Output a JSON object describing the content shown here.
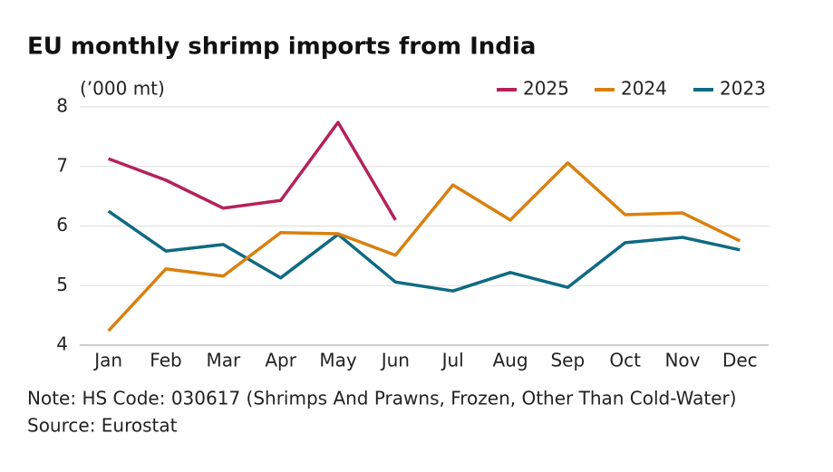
{
  "chart_data": {
    "type": "line",
    "title": "EU monthly shrimp imports from India",
    "y_label": "(’000 mt)",
    "categories": [
      "Jan",
      "Feb",
      "Mar",
      "Apr",
      "May",
      "Jun",
      "Jul",
      "Aug",
      "Sep",
      "Oct",
      "Nov",
      "Dec"
    ],
    "series": [
      {
        "name": "2025",
        "color": "#b5215a",
        "values": [
          7.13,
          6.77,
          6.3,
          6.43,
          7.74,
          6.1,
          null,
          null,
          null,
          null,
          null,
          null
        ]
      },
      {
        "name": "2024",
        "color": "#d9800f",
        "values": [
          4.24,
          5.28,
          5.16,
          5.89,
          5.87,
          5.51,
          6.69,
          6.1,
          7.06,
          6.19,
          6.22,
          5.75
        ]
      },
      {
        "name": "2023",
        "color": "#0f6a82",
        "values": [
          6.25,
          5.58,
          5.69,
          5.13,
          5.86,
          5.06,
          4.91,
          5.22,
          4.97,
          5.72,
          5.81,
          5.6
        ]
      }
    ],
    "ylim": [
      4,
      8
    ],
    "yticks": [
      4,
      5,
      6,
      7,
      8
    ],
    "grid": true,
    "legend": "top-right",
    "note": "Note: HS Code: 030617 (Shrimps And Prawns, Frozen, Other Than Cold-Water)",
    "source": "Source: Eurostat"
  }
}
